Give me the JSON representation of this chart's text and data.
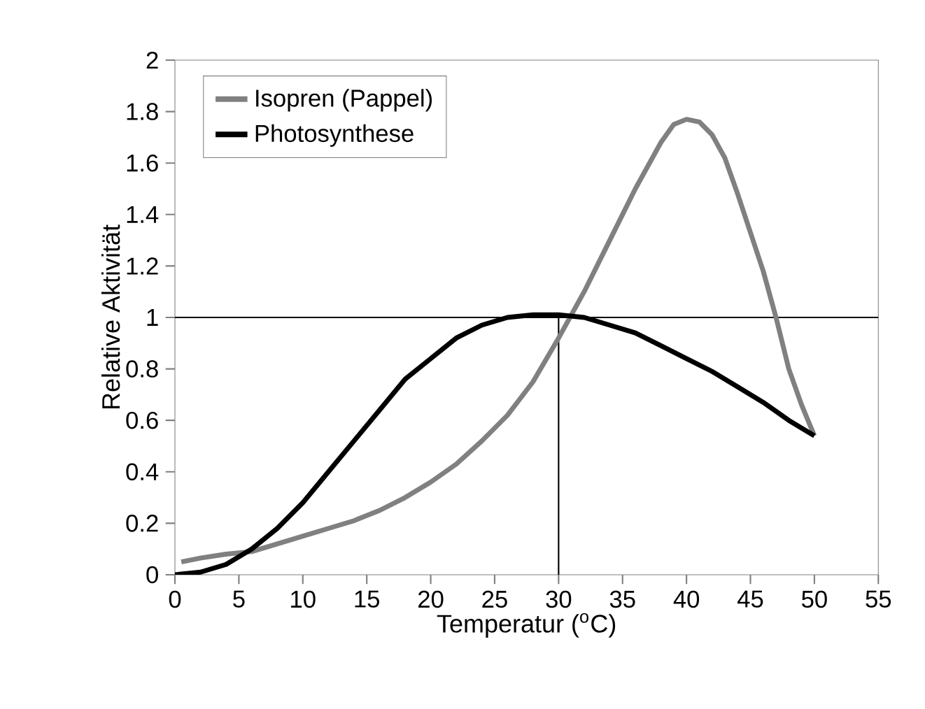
{
  "chart_data": {
    "type": "line",
    "xlabel": "Temperatur ($^{o}$C)",
    "ylabel": "Relative Aktivität",
    "xlim": [
      0,
      55
    ],
    "xticks": [
      0,
      5,
      10,
      15,
      20,
      25,
      30,
      35,
      40,
      45,
      50,
      55
    ],
    "ylim": [
      0,
      2
    ],
    "yticks": [
      0,
      0.2,
      0.4,
      0.6,
      0.8,
      1,
      1.2,
      1.4,
      1.6,
      1.8,
      2
    ],
    "grid": false,
    "legend": "top left",
    "marker": "none",
    "line_style": "solid",
    "ref_lines": [
      {
        "axis": "y",
        "value": 1,
        "color": "#000000"
      },
      {
        "axis": "x",
        "value": 30,
        "color": "#000000"
      }
    ],
    "series": [
      {
        "name": "Isopren (Pappel)",
        "color": "#808080",
        "x": [
          0.5,
          2,
          4,
          6,
          8,
          10,
          12,
          14,
          16,
          18,
          20,
          22,
          24,
          26,
          28,
          30,
          32,
          34,
          36,
          38,
          39,
          40,
          41,
          42,
          43,
          44,
          46,
          47,
          48,
          49,
          50
        ],
        "values": [
          0.05,
          0.065,
          0.08,
          0.09,
          0.12,
          0.15,
          0.18,
          0.21,
          0.25,
          0.3,
          0.36,
          0.43,
          0.52,
          0.62,
          0.75,
          0.92,
          1.1,
          1.3,
          1.5,
          1.68,
          1.75,
          1.77,
          1.76,
          1.71,
          1.62,
          1.48,
          1.18,
          1.0,
          0.8,
          0.66,
          0.54
        ]
      },
      {
        "name": "Photosynthese",
        "color": "#000000",
        "x": [
          0,
          2,
          4,
          6,
          8,
          10,
          12,
          14,
          16,
          18,
          20,
          22,
          24,
          26,
          28,
          30,
          32,
          34,
          36,
          38,
          40,
          42,
          44,
          46,
          48,
          50
        ],
        "values": [
          0,
          0.01,
          0.04,
          0.1,
          0.18,
          0.28,
          0.4,
          0.52,
          0.64,
          0.76,
          0.84,
          0.92,
          0.97,
          1.0,
          1.01,
          1.01,
          1.0,
          0.97,
          0.94,
          0.89,
          0.84,
          0.79,
          0.73,
          0.67,
          0.6,
          0.54
        ]
      }
    ]
  }
}
